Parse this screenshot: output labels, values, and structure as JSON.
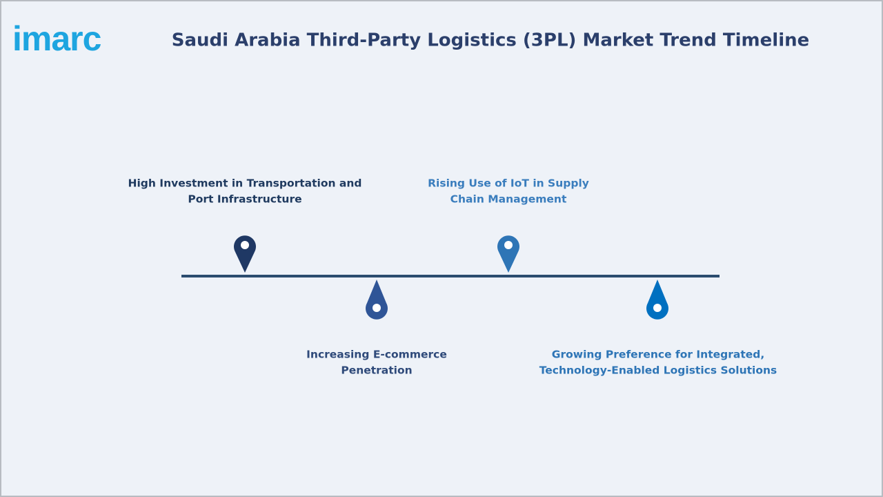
{
  "logo": "imarc",
  "title": "Saudi Arabia Third-Party Logistics (3PL) Market Trend Timeline",
  "items": [
    {
      "lines": [
        "High Investment in Transportation and",
        "Port Infrastructure"
      ]
    },
    {
      "lines": [
        "Increasing E-commerce",
        "Penetration"
      ]
    },
    {
      "lines": [
        "Rising Use of IoT in Supply",
        "Chain Management"
      ]
    },
    {
      "lines": [
        "Growing Preference for Integrated,",
        "Technology-Enabled Logistics Solutions"
      ]
    }
  ]
}
